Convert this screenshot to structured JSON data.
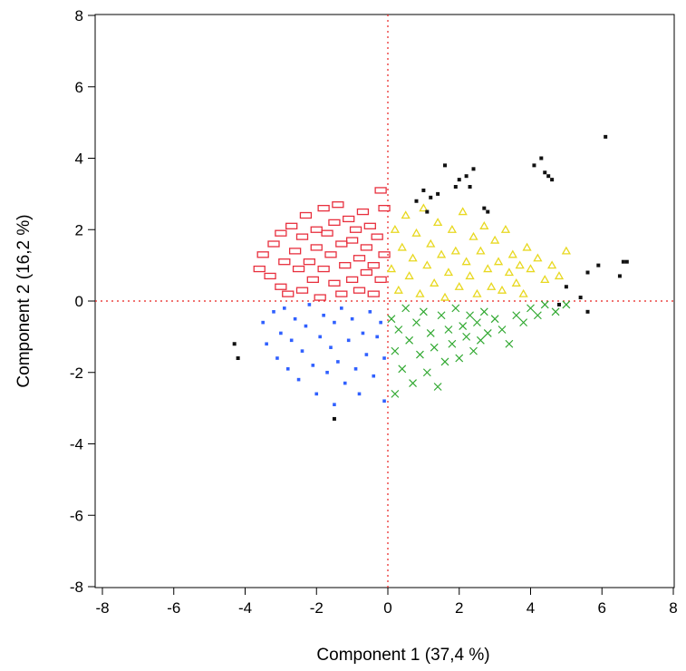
{
  "chart_data": {
    "type": "scatter",
    "xlabel": "Component 1 (37,4 %)",
    "ylabel": "Component 2 (16,2 %)",
    "xlim": [
      -8,
      8
    ],
    "ylim": [
      -8,
      8
    ],
    "xticks": [
      -8,
      -6,
      -4,
      -2,
      0,
      2,
      4,
      6,
      8
    ],
    "yticks": [
      -8,
      -6,
      -4,
      -2,
      0,
      2,
      4,
      6,
      8
    ],
    "xtick_labels": [
      "-8",
      "-6",
      "-4",
      "-2",
      "0",
      "2",
      "4",
      "6",
      "8"
    ],
    "ytick_labels": [
      "-8",
      "-6",
      "-4",
      "-2",
      "0",
      "2",
      "4",
      "6",
      "8"
    ],
    "reference_lines": {
      "x": 0,
      "y": 0,
      "style": "dotted",
      "color": "#e8201e"
    },
    "grid": false,
    "legend": "none",
    "series": [
      {
        "marker": "rect-outline",
        "color": "#e8303e",
        "points": [
          [
            -3.6,
            0.9
          ],
          [
            -3.5,
            1.3
          ],
          [
            -3.3,
            0.7
          ],
          [
            -3.2,
            1.6
          ],
          [
            -3.0,
            1.9
          ],
          [
            -3.0,
            0.4
          ],
          [
            -2.9,
            1.1
          ],
          [
            -2.8,
            0.2
          ],
          [
            -2.7,
            2.1
          ],
          [
            -2.6,
            1.4
          ],
          [
            -2.5,
            0.9
          ],
          [
            -2.4,
            1.8
          ],
          [
            -2.4,
            0.3
          ],
          [
            -2.3,
            2.4
          ],
          [
            -2.2,
            1.1
          ],
          [
            -2.1,
            0.6
          ],
          [
            -2.0,
            2.0
          ],
          [
            -2.0,
            1.5
          ],
          [
            -1.9,
            0.1
          ],
          [
            -1.8,
            2.6
          ],
          [
            -1.8,
            0.9
          ],
          [
            -1.7,
            1.9
          ],
          [
            -1.6,
            1.3
          ],
          [
            -1.5,
            2.2
          ],
          [
            -1.5,
            0.5
          ],
          [
            -1.4,
            2.7
          ],
          [
            -1.3,
            1.6
          ],
          [
            -1.3,
            0.2
          ],
          [
            -1.2,
            1.0
          ],
          [
            -1.1,
            2.3
          ],
          [
            -1.0,
            1.7
          ],
          [
            -1.0,
            0.6
          ],
          [
            -0.9,
            2.0
          ],
          [
            -0.8,
            1.2
          ],
          [
            -0.8,
            0.3
          ],
          [
            -0.7,
            2.5
          ],
          [
            -0.6,
            1.5
          ],
          [
            -0.6,
            0.8
          ],
          [
            -0.5,
            2.1
          ],
          [
            -0.4,
            1.0
          ],
          [
            -0.4,
            0.2
          ],
          [
            -0.3,
            1.8
          ],
          [
            -0.2,
            3.1
          ],
          [
            -0.2,
            0.6
          ],
          [
            -0.1,
            2.6
          ],
          [
            -0.1,
            1.3
          ]
        ]
      },
      {
        "marker": "triangle",
        "color": "#e8d820",
        "points": [
          [
            0.1,
            0.9
          ],
          [
            0.2,
            2.0
          ],
          [
            0.3,
            0.3
          ],
          [
            0.4,
            1.5
          ],
          [
            0.5,
            2.4
          ],
          [
            0.6,
            0.7
          ],
          [
            0.7,
            1.2
          ],
          [
            0.8,
            1.9
          ],
          [
            0.9,
            0.2
          ],
          [
            1.0,
            2.6
          ],
          [
            1.1,
            1.0
          ],
          [
            1.2,
            1.6
          ],
          [
            1.3,
            0.5
          ],
          [
            1.4,
            2.2
          ],
          [
            1.5,
            1.3
          ],
          [
            1.6,
            0.1
          ],
          [
            1.7,
            0.8
          ],
          [
            1.8,
            2.0
          ],
          [
            1.9,
            1.4
          ],
          [
            2.0,
            0.4
          ],
          [
            2.1,
            2.5
          ],
          [
            2.2,
            1.1
          ],
          [
            2.3,
            0.7
          ],
          [
            2.4,
            1.8
          ],
          [
            2.5,
            0.2
          ],
          [
            2.6,
            1.4
          ],
          [
            2.7,
            2.1
          ],
          [
            2.8,
            0.9
          ],
          [
            2.9,
            0.4
          ],
          [
            3.0,
            1.7
          ],
          [
            3.1,
            1.1
          ],
          [
            3.2,
            0.3
          ],
          [
            3.3,
            2.0
          ],
          [
            3.4,
            0.8
          ],
          [
            3.5,
            1.3
          ],
          [
            3.6,
            0.5
          ],
          [
            3.7,
            1.0
          ],
          [
            3.8,
            0.2
          ],
          [
            3.9,
            1.5
          ],
          [
            4.0,
            0.9
          ],
          [
            4.2,
            1.2
          ],
          [
            4.4,
            0.6
          ],
          [
            4.6,
            1.0
          ],
          [
            4.8,
            0.7
          ],
          [
            5.0,
            1.4
          ]
        ]
      },
      {
        "marker": "square",
        "color": "#3060ff",
        "points": [
          [
            -3.5,
            -0.6
          ],
          [
            -3.4,
            -1.2
          ],
          [
            -3.2,
            -0.3
          ],
          [
            -3.1,
            -1.6
          ],
          [
            -3.0,
            -0.9
          ],
          [
            -2.9,
            -0.2
          ],
          [
            -2.8,
            -1.9
          ],
          [
            -2.7,
            -1.1
          ],
          [
            -2.6,
            -0.5
          ],
          [
            -2.5,
            -2.2
          ],
          [
            -2.4,
            -1.4
          ],
          [
            -2.3,
            -0.7
          ],
          [
            -2.2,
            -0.1
          ],
          [
            -2.1,
            -1.8
          ],
          [
            -2.0,
            -2.6
          ],
          [
            -1.9,
            -1.0
          ],
          [
            -1.8,
            -0.4
          ],
          [
            -1.7,
            -2.0
          ],
          [
            -1.6,
            -1.3
          ],
          [
            -1.5,
            -2.9
          ],
          [
            -1.5,
            -0.6
          ],
          [
            -1.4,
            -1.7
          ],
          [
            -1.3,
            -0.2
          ],
          [
            -1.2,
            -2.3
          ],
          [
            -1.1,
            -1.1
          ],
          [
            -1.0,
            -0.5
          ],
          [
            -0.9,
            -1.9
          ],
          [
            -0.8,
            -2.6
          ],
          [
            -0.7,
            -0.9
          ],
          [
            -0.6,
            -1.5
          ],
          [
            -0.5,
            -0.3
          ],
          [
            -0.4,
            -2.1
          ],
          [
            -0.3,
            -1.0
          ],
          [
            -0.2,
            -0.6
          ],
          [
            -0.1,
            -1.6
          ],
          [
            -0.1,
            -2.8
          ]
        ]
      },
      {
        "marker": "x",
        "color": "#30a830",
        "points": [
          [
            0.1,
            -0.5
          ],
          [
            0.2,
            -1.4
          ],
          [
            0.2,
            -2.6
          ],
          [
            0.3,
            -0.8
          ],
          [
            0.4,
            -1.9
          ],
          [
            0.5,
            -0.2
          ],
          [
            0.6,
            -1.1
          ],
          [
            0.7,
            -2.3
          ],
          [
            0.8,
            -0.6
          ],
          [
            0.9,
            -1.5
          ],
          [
            1.0,
            -0.3
          ],
          [
            1.1,
            -2.0
          ],
          [
            1.2,
            -0.9
          ],
          [
            1.3,
            -1.3
          ],
          [
            1.4,
            -2.4
          ],
          [
            1.5,
            -0.4
          ],
          [
            1.6,
            -1.7
          ],
          [
            1.7,
            -0.8
          ],
          [
            1.8,
            -1.2
          ],
          [
            1.9,
            -0.2
          ],
          [
            2.0,
            -1.6
          ],
          [
            2.1,
            -0.7
          ],
          [
            2.2,
            -1.0
          ],
          [
            2.3,
            -0.4
          ],
          [
            2.4,
            -1.4
          ],
          [
            2.5,
            -0.6
          ],
          [
            2.6,
            -1.1
          ],
          [
            2.7,
            -0.3
          ],
          [
            2.8,
            -0.9
          ],
          [
            3.0,
            -0.5
          ],
          [
            3.2,
            -0.8
          ],
          [
            3.4,
            -1.2
          ],
          [
            3.6,
            -0.4
          ],
          [
            3.8,
            -0.6
          ],
          [
            4.0,
            -0.2
          ],
          [
            4.2,
            -0.4
          ],
          [
            4.4,
            -0.1
          ],
          [
            4.7,
            -0.3
          ],
          [
            5.0,
            -0.1
          ]
        ]
      },
      {
        "marker": "dot",
        "color": "#111111",
        "points": [
          [
            -4.3,
            -1.2
          ],
          [
            -4.2,
            -1.6
          ],
          [
            -1.5,
            -3.3
          ],
          [
            0.8,
            2.8
          ],
          [
            1.0,
            3.1
          ],
          [
            1.1,
            2.5
          ],
          [
            1.2,
            2.9
          ],
          [
            1.4,
            3.0
          ],
          [
            1.6,
            3.8
          ],
          [
            1.9,
            3.2
          ],
          [
            2.0,
            3.4
          ],
          [
            2.2,
            3.5
          ],
          [
            2.3,
            3.2
          ],
          [
            2.4,
            3.7
          ],
          [
            2.7,
            2.6
          ],
          [
            2.8,
            2.5
          ],
          [
            4.1,
            3.8
          ],
          [
            4.3,
            4.0
          ],
          [
            4.4,
            3.6
          ],
          [
            4.5,
            3.5
          ],
          [
            4.6,
            3.4
          ],
          [
            4.8,
            -0.1
          ],
          [
            5.0,
            0.4
          ],
          [
            5.4,
            0.1
          ],
          [
            5.6,
            0.8
          ],
          [
            5.6,
            -0.3
          ],
          [
            5.9,
            1.0
          ],
          [
            6.1,
            4.6
          ],
          [
            6.5,
            0.7
          ],
          [
            6.6,
            1.1
          ],
          [
            6.7,
            1.1
          ]
        ]
      }
    ]
  }
}
